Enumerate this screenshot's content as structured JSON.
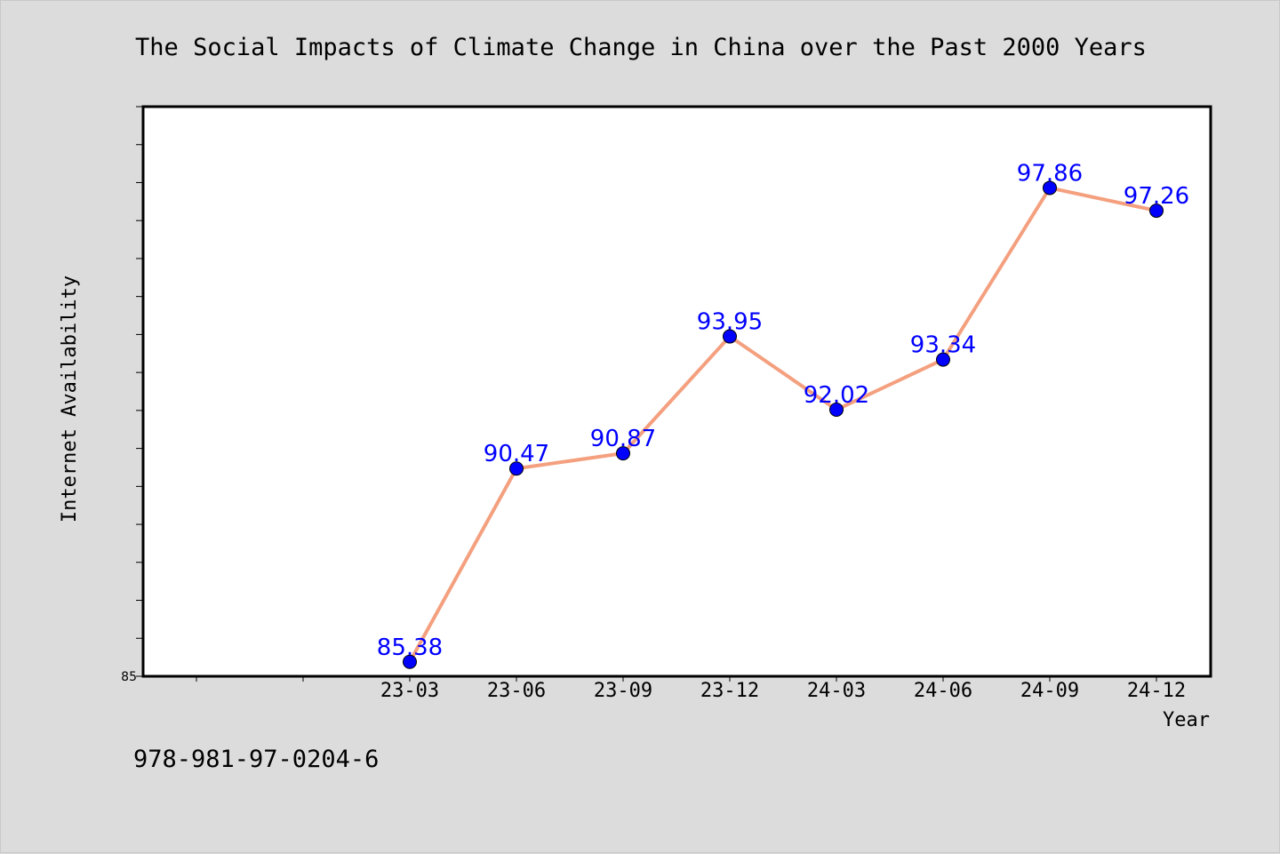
{
  "chart_data": {
    "type": "line",
    "title": "The Social Impacts of Climate Change in China over the Past 2000 Years",
    "xlabel": "Year",
    "ylabel": "Internet Availability",
    "categories": [
      "23-03",
      "23-06",
      "23-09",
      "23-12",
      "24-03",
      "24-06",
      "24-09",
      "24-12"
    ],
    "series": [
      {
        "values": [
          85.38,
          90.47,
          90.87,
          93.95,
          92.02,
          93.34,
          97.86,
          97.26
        ]
      }
    ],
    "ylim": [
      85,
      100
    ],
    "ytick_labels": [
      "85"
    ],
    "grid": false,
    "line_color": "#f4a07f",
    "marker_color": "#0000ff",
    "label_color": "#0000ff"
  },
  "footer": {
    "text": "978-981-97-0204-6"
  }
}
